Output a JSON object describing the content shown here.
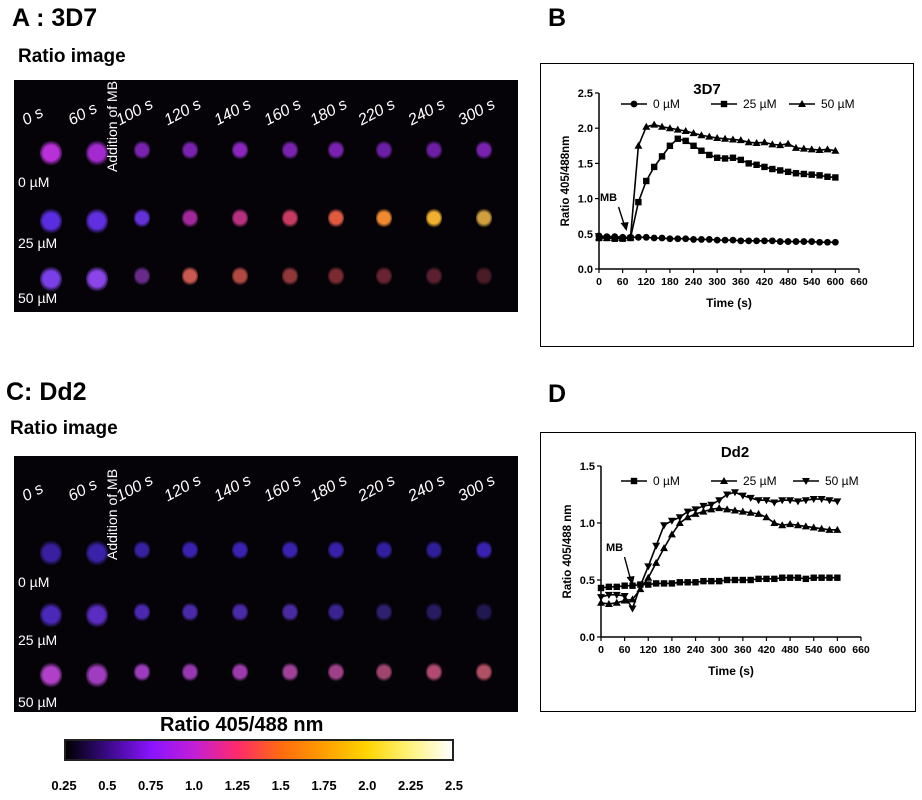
{
  "panels": {
    "a_label": "A : 3D7",
    "a_sub": "Ratio image",
    "b_label": "B",
    "c_label": "C: Dd2",
    "c_sub": "Ratio image",
    "d_label": "D"
  },
  "micrograph": {
    "time_labels": [
      "0 s",
      "60 s",
      "100 s",
      "120 s",
      "140 s",
      "160 s",
      "180 s",
      "220 s",
      "240 s",
      "300 s"
    ],
    "conc_labels": [
      "0 µM",
      "25 µM",
      "50 µM"
    ],
    "addition_label": "Addition of MB"
  },
  "colorbar": {
    "title": "Ratio 405/488 nm",
    "ticks": [
      "0.25",
      "0.5",
      "0.75",
      "1.0",
      "1.25",
      "1.5",
      "1.75",
      "2.0",
      "2.25",
      "2.5"
    ],
    "colors": [
      "#000000",
      "#3b0a8a",
      "#8a14ff",
      "#c21fd6",
      "#ff2a6a",
      "#ff6a10",
      "#ff9d00",
      "#ffd400",
      "#fff27a",
      "#ffffff"
    ]
  },
  "chart_data": [
    {
      "type": "line",
      "title": "3D7",
      "xlabel": "Time (s)",
      "ylabel": "Ratio 405/488nm",
      "xlim": [
        0,
        660
      ],
      "ylim": [
        0.0,
        2.5
      ],
      "xticks": [
        "0",
        "60",
        "120",
        "180",
        "240",
        "300",
        "360",
        "420",
        "480",
        "540",
        "600",
        "660"
      ],
      "yticks": [
        "0.0",
        "0.5",
        "1.0",
        "1.5",
        "2.0",
        "2.5"
      ],
      "legend_position": "top",
      "annotation": "MB",
      "annotation_x": 70,
      "series": [
        {
          "name": "0 µM",
          "marker": "circle",
          "x": [
            0,
            20,
            40,
            60,
            80,
            100,
            120,
            140,
            160,
            180,
            200,
            220,
            240,
            260,
            280,
            300,
            320,
            340,
            360,
            380,
            400,
            420,
            440,
            460,
            480,
            500,
            520,
            540,
            560,
            580,
            600
          ],
          "y": [
            0.47,
            0.46,
            0.46,
            0.45,
            0.45,
            0.45,
            0.45,
            0.44,
            0.44,
            0.43,
            0.43,
            0.43,
            0.42,
            0.42,
            0.42,
            0.41,
            0.41,
            0.41,
            0.4,
            0.4,
            0.4,
            0.4,
            0.4,
            0.39,
            0.39,
            0.39,
            0.39,
            0.39,
            0.38,
            0.38,
            0.38
          ]
        },
        {
          "name": "25 µM",
          "marker": "square",
          "x": [
            0,
            20,
            40,
            60,
            80,
            100,
            120,
            140,
            160,
            180,
            200,
            220,
            240,
            260,
            280,
            300,
            320,
            340,
            360,
            380,
            400,
            420,
            440,
            460,
            480,
            500,
            520,
            540,
            560,
            580,
            600
          ],
          "y": [
            0.44,
            0.44,
            0.43,
            0.43,
            0.44,
            0.95,
            1.25,
            1.45,
            1.6,
            1.75,
            1.85,
            1.82,
            1.75,
            1.68,
            1.62,
            1.58,
            1.57,
            1.58,
            1.55,
            1.5,
            1.48,
            1.45,
            1.42,
            1.4,
            1.38,
            1.36,
            1.35,
            1.34,
            1.33,
            1.31,
            1.3
          ]
        },
        {
          "name": "50 µM",
          "marker": "triangle",
          "x": [
            0,
            20,
            40,
            60,
            80,
            100,
            120,
            140,
            160,
            180,
            200,
            220,
            240,
            260,
            280,
            300,
            320,
            340,
            360,
            380,
            400,
            420,
            440,
            460,
            480,
            500,
            520,
            540,
            560,
            580,
            600
          ],
          "y": [
            0.45,
            0.44,
            0.44,
            0.44,
            0.45,
            1.75,
            2.02,
            2.05,
            2.02,
            2.0,
            1.98,
            1.96,
            1.93,
            1.9,
            1.88,
            1.86,
            1.85,
            1.84,
            1.83,
            1.8,
            1.79,
            1.8,
            1.77,
            1.76,
            1.78,
            1.72,
            1.71,
            1.7,
            1.69,
            1.7,
            1.68
          ]
        }
      ]
    },
    {
      "type": "line",
      "title": "Dd2",
      "xlabel": "Time (s)",
      "ylabel": "Ratio 405/488 nm",
      "xlim": [
        0,
        660
      ],
      "ylim": [
        0.0,
        1.5
      ],
      "xticks": [
        "0",
        "60",
        "120",
        "180",
        "240",
        "300",
        "360",
        "420",
        "480",
        "540",
        "600",
        "660"
      ],
      "yticks": [
        "0.0",
        "0.5",
        "1.0",
        "1.5"
      ],
      "legend_position": "top",
      "annotation": "MB",
      "annotation_x": 80,
      "series": [
        {
          "name": "0 µM",
          "marker": "square",
          "x": [
            0,
            20,
            40,
            60,
            80,
            100,
            120,
            140,
            160,
            180,
            200,
            220,
            240,
            260,
            280,
            300,
            320,
            340,
            360,
            380,
            400,
            420,
            440,
            460,
            480,
            500,
            520,
            540,
            560,
            580,
            600
          ],
          "y": [
            0.43,
            0.44,
            0.44,
            0.45,
            0.45,
            0.46,
            0.46,
            0.47,
            0.47,
            0.47,
            0.48,
            0.48,
            0.48,
            0.49,
            0.49,
            0.49,
            0.5,
            0.5,
            0.5,
            0.5,
            0.51,
            0.51,
            0.51,
            0.52,
            0.52,
            0.52,
            0.51,
            0.52,
            0.52,
            0.52,
            0.52
          ]
        },
        {
          "name": "25 µM",
          "marker": "triangle",
          "x": [
            0,
            20,
            40,
            60,
            80,
            100,
            120,
            140,
            160,
            180,
            200,
            220,
            240,
            260,
            280,
            300,
            320,
            340,
            360,
            380,
            400,
            420,
            440,
            460,
            480,
            500,
            520,
            540,
            560,
            580,
            600
          ],
          "y": [
            0.3,
            0.29,
            0.3,
            0.32,
            0.33,
            0.42,
            0.52,
            0.65,
            0.78,
            0.9,
            1.0,
            1.05,
            1.08,
            1.1,
            1.12,
            1.13,
            1.12,
            1.11,
            1.1,
            1.09,
            1.08,
            1.05,
            1.0,
            0.98,
            0.99,
            0.98,
            0.97,
            0.96,
            0.95,
            0.94,
            0.94
          ]
        },
        {
          "name": "50 µM",
          "marker": "triangle-down",
          "x": [
            0,
            20,
            40,
            60,
            80,
            100,
            120,
            140,
            160,
            180,
            200,
            220,
            240,
            260,
            280,
            300,
            320,
            340,
            360,
            380,
            400,
            420,
            440,
            460,
            480,
            500,
            520,
            540,
            560,
            580,
            600
          ],
          "y": [
            0.35,
            0.37,
            0.37,
            0.36,
            0.25,
            0.45,
            0.62,
            0.8,
            0.98,
            1.02,
            1.05,
            1.1,
            1.12,
            1.15,
            1.16,
            1.2,
            1.25,
            1.27,
            1.24,
            1.22,
            1.2,
            1.2,
            1.18,
            1.2,
            1.2,
            1.19,
            1.2,
            1.21,
            1.21,
            1.2,
            1.19
          ]
        }
      ]
    }
  ]
}
